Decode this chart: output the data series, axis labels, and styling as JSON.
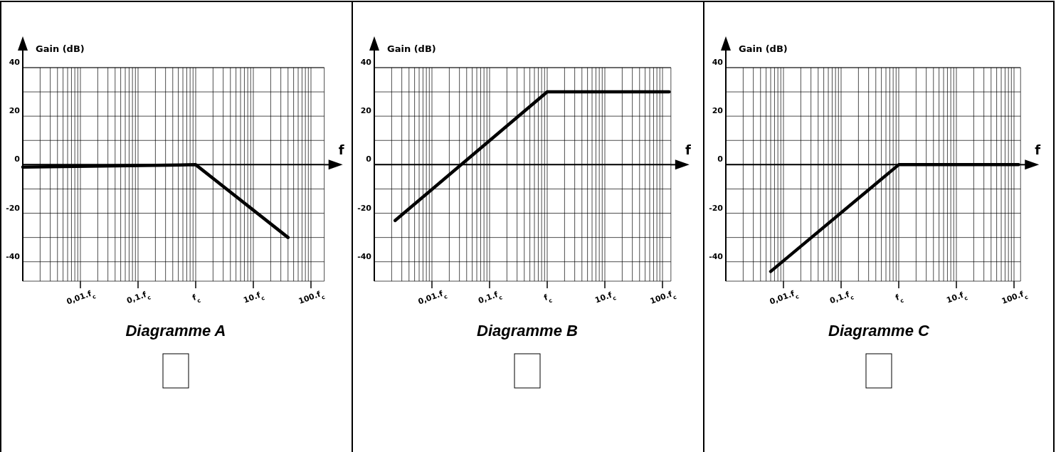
{
  "chart_data": [
    {
      "type": "line",
      "title": "Diagramme A",
      "xlabel": "f",
      "ylabel": "Gain (dB)",
      "log": "x",
      "grid": true,
      "xlim": [
        0.001,
        170
      ],
      "ylim": [
        -48,
        40
      ],
      "xticks": [
        {
          "value": 0.01,
          "label": "0,01.f$_{c}$"
        },
        {
          "value": 0.1,
          "label": "0,1.f$_{c}$"
        },
        {
          "value": 1,
          "label": "f$_{c}$"
        },
        {
          "value": 10,
          "label": "10.f$_{c}$"
        },
        {
          "value": 100,
          "label": "100.f$_{c}$"
        }
      ],
      "yticks": [
        40,
        {
          "value": 30,
          "label": null
        },
        20,
        {
          "value": 10,
          "label": null
        },
        0,
        {
          "value": -10,
          "label": null
        },
        -20,
        {
          "value": -30,
          "label": null
        },
        -40
      ],
      "series": [
        {
          "color": "#000000",
          "x": [
            0.001,
            1,
            40
          ],
          "values": [
            -1,
            0,
            -30
          ]
        }
      ]
    },
    {
      "type": "line",
      "title": "Diagramme B",
      "xlabel": "f",
      "ylabel": "Gain (dB)",
      "log": "x",
      "grid": true,
      "xlim": [
        0.001,
        140
      ],
      "ylim": [
        -48,
        40
      ],
      "xticks": [
        {
          "value": 0.01,
          "label": "0,01.f$_{c}$"
        },
        {
          "value": 0.1,
          "label": "0,1.f$_{c}$"
        },
        {
          "value": 1,
          "label": "f$_{c}$"
        },
        {
          "value": 10,
          "label": "10.f$_{c}$"
        },
        {
          "value": 100,
          "label": "100.f$_{c}$"
        }
      ],
      "yticks": [
        40,
        {
          "value": 30,
          "label": null
        },
        20,
        {
          "value": 10,
          "label": null
        },
        0,
        {
          "value": -10,
          "label": null
        },
        -20,
        {
          "value": -30,
          "label": null
        },
        -40
      ],
      "series": [
        {
          "color": "#000000",
          "x": [
            0.0023,
            1,
            130
          ],
          "values": [
            -23,
            30,
            30
          ]
        }
      ]
    },
    {
      "type": "line",
      "title": "Diagramme C",
      "xlabel": "f",
      "ylabel": "Gain (dB)",
      "log": "x",
      "grid": true,
      "xlim": [
        0.001,
        130
      ],
      "ylim": [
        -48,
        40
      ],
      "xticks": [
        {
          "value": 0.01,
          "label": "0,01.f$_{c}$"
        },
        {
          "value": 0.1,
          "label": "0,1.f$_{c}$"
        },
        {
          "value": 1,
          "label": "f$_{c}$"
        },
        {
          "value": 10,
          "label": "10.f$_{c}$"
        },
        {
          "value": 100,
          "label": "100.f$_{c}$"
        }
      ],
      "yticks": [
        40,
        {
          "value": 30,
          "label": null
        },
        20,
        {
          "value": 10,
          "label": null
        },
        0,
        {
          "value": -10,
          "label": null
        },
        -20,
        {
          "value": -30,
          "label": null
        },
        -40
      ],
      "series": [
        {
          "color": "#000000",
          "x": [
            0.006,
            1,
            120
          ],
          "values": [
            -44,
            0,
            0
          ]
        }
      ]
    }
  ]
}
